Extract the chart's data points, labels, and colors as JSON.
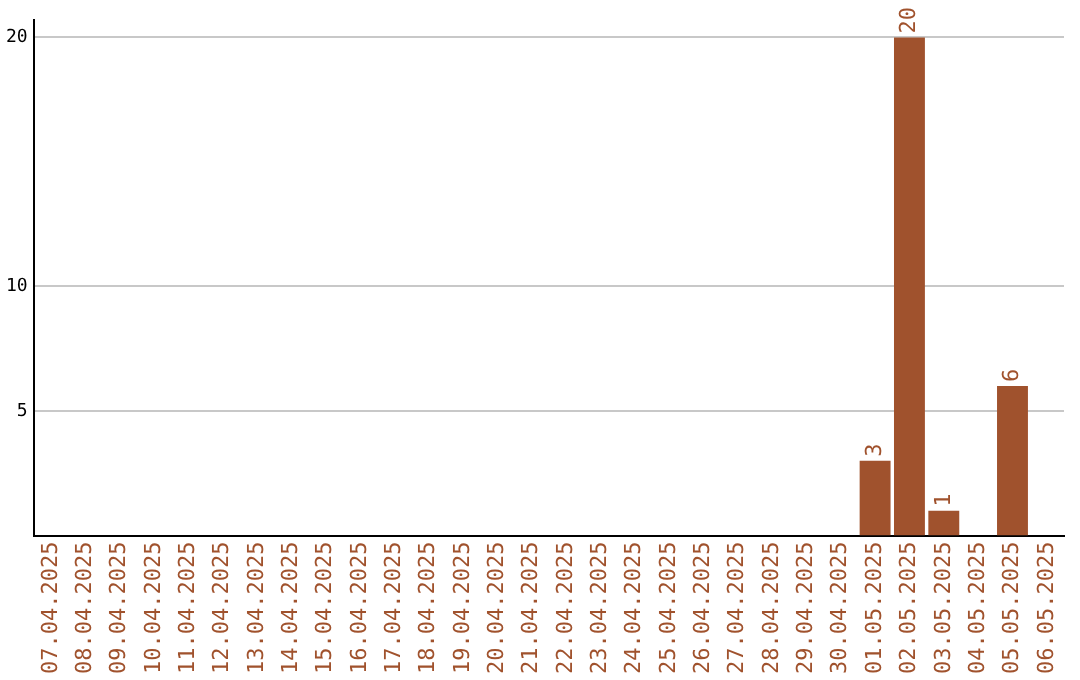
{
  "chart_data": {
    "type": "bar",
    "categories": [
      "07.04.2025",
      "08.04.2025",
      "09.04.2025",
      "10.04.2025",
      "11.04.2025",
      "12.04.2025",
      "13.04.2025",
      "14.04.2025",
      "15.04.2025",
      "16.04.2025",
      "17.04.2025",
      "18.04.2025",
      "19.04.2025",
      "20.04.2025",
      "21.04.2025",
      "22.04.2025",
      "23.04.2025",
      "24.04.2025",
      "25.04.2025",
      "26.04.2025",
      "27.04.2025",
      "28.04.2025",
      "29.04.2025",
      "30.04.2025",
      "01.05.2025",
      "02.05.2025",
      "03.05.2025",
      "04.05.2025",
      "05.05.2025",
      "06.05.2025"
    ],
    "values": [
      0,
      0,
      0,
      0,
      0,
      0,
      0,
      0,
      0,
      0,
      0,
      0,
      0,
      0,
      0,
      0,
      0,
      0,
      0,
      0,
      0,
      0,
      0,
      0,
      3,
      20,
      1,
      0,
      6,
      0
    ],
    "value_labels": [
      null,
      null,
      null,
      null,
      null,
      null,
      null,
      null,
      null,
      null,
      null,
      null,
      null,
      null,
      null,
      null,
      null,
      null,
      null,
      null,
      null,
      null,
      null,
      null,
      "3",
      "20",
      "1",
      null,
      "6",
      null
    ],
    "color": "#a0522d",
    "ylim": [
      0,
      20.7
    ],
    "yticks": [
      5,
      10,
      20
    ],
    "grid": "y",
    "legend": false
  }
}
